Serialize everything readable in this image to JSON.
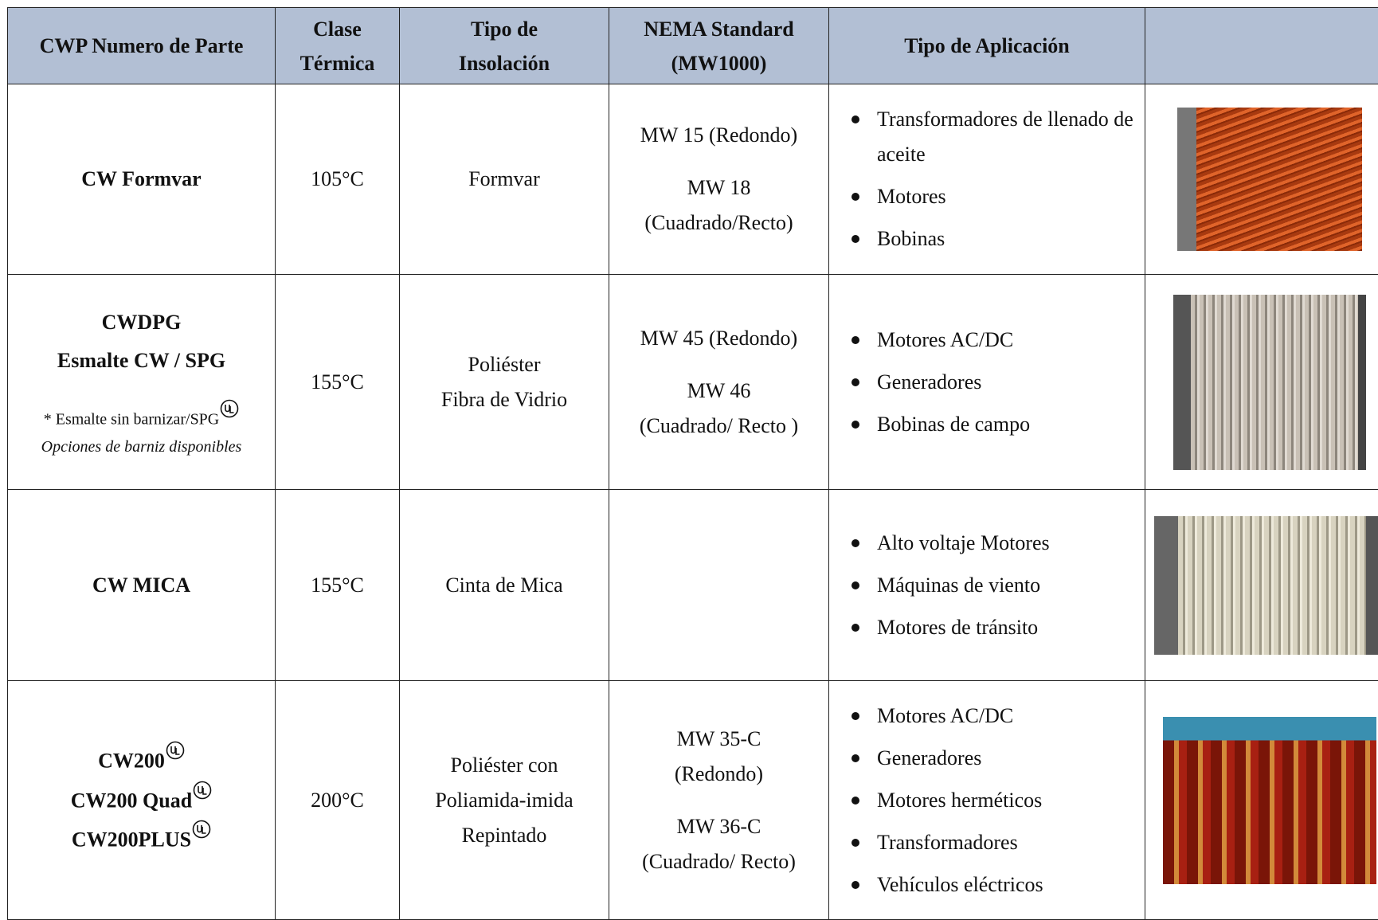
{
  "header": {
    "columns": [
      [
        "CWP Numero de Parte"
      ],
      [
        "Clase",
        "Térmica"
      ],
      [
        "Tipo de",
        "Insolación"
      ],
      [
        "NEMA Standard",
        "(MW1000)"
      ],
      [
        "Tipo de Aplicación"
      ]
    ]
  },
  "rows": [
    {
      "part": [
        {
          "text": "CW Formvar",
          "ul": false
        }
      ],
      "notes": [],
      "clase": "105°C",
      "tipo": [
        "Formvar"
      ],
      "nema": [
        [
          "MW 15 (Redondo)"
        ],
        [
          "MW 18",
          "(Cuadrado/Recto)"
        ]
      ],
      "aplicaciones": [
        "Transformadores de llenado de aceite",
        "Motores",
        "Bobinas"
      ]
    },
    {
      "part": [
        {
          "text": "CWDPG",
          "ul": false
        },
        {
          "text": "Esmalte CW / SPG",
          "ul": false
        }
      ],
      "notes": [
        {
          "text": "* Esmalte sin barnizar/SPG",
          "ul": true,
          "italic": false
        },
        {
          "text": "Opciones de barniz disponibles",
          "ul": false,
          "italic": true
        }
      ],
      "clase": "155°C",
      "tipo": [
        "Poliéster",
        "Fibra de Vidrio"
      ],
      "nema": [
        [
          "MW 45 (Redondo)"
        ],
        [
          "MW 46",
          "(Cuadrado/ Recto )"
        ]
      ],
      "aplicaciones": [
        "Motores AC/DC",
        "Generadores",
        "Bobinas de campo"
      ]
    },
    {
      "part": [
        {
          "text": "CW MICA",
          "ul": false
        }
      ],
      "notes": [],
      "clase": "155°C",
      "tipo": [
        "Cinta de Mica"
      ],
      "nema": [],
      "aplicaciones": [
        "Alto voltaje Motores",
        "Máquinas de viento",
        "Motores de tránsito"
      ]
    },
    {
      "part": [
        {
          "text": "CW200",
          "ul": true
        },
        {
          "text": "CW200 Quad",
          "ul": true
        },
        {
          "text": "CW200PLUS",
          "ul": true
        }
      ],
      "notes": [],
      "clase": "200°C",
      "tipo": [
        "Poliéster con",
        "Poliamida-imida",
        "Repintado"
      ],
      "nema": [
        [
          "MW 35-C",
          "(Redondo)"
        ],
        [
          "MW 36-C",
          "(Cuadrado/ Recto)"
        ]
      ],
      "aplicaciones": [
        "Motores AC/DC",
        "Generadores",
        "Motores  herméticos",
        "Transformadores",
        "Vehículos eléctricos"
      ]
    }
  ]
}
